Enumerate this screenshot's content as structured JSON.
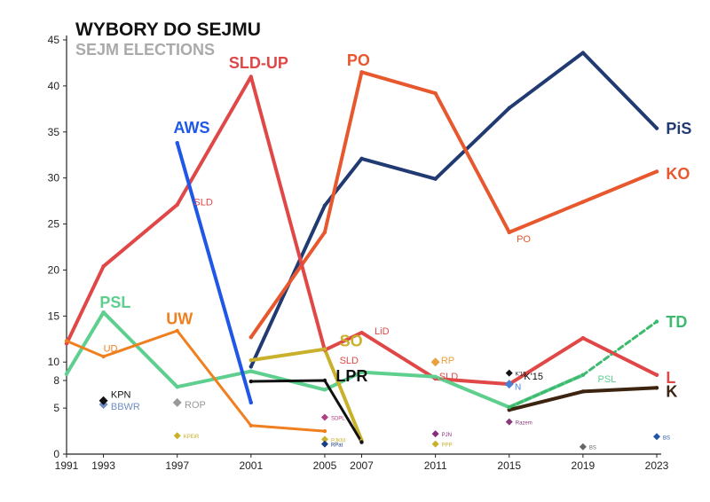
{
  "chart_data": {
    "type": "line",
    "title": "WYBORY DO SEJMU",
    "subtitle": "SEJM ELECTIONS",
    "xlabel": "",
    "ylabel": "",
    "ylim": [
      0,
      45
    ],
    "yticks": [
      0,
      5,
      8,
      10,
      15,
      20,
      25,
      30,
      35,
      40,
      45
    ],
    "x": [
      1991,
      1993,
      1997,
      2001,
      2005,
      2007,
      2011,
      2015,
      2019,
      2023
    ],
    "grid": false,
    "series": [
      {
        "name": "PiS",
        "color": "#213a72",
        "width": 4,
        "points": [
          [
            2001,
            9.5
          ],
          [
            2005,
            27.0
          ],
          [
            2007,
            32.1
          ],
          [
            2011,
            29.9
          ],
          [
            2015,
            37.6
          ],
          [
            2019,
            43.6
          ],
          [
            2023,
            35.4
          ]
        ],
        "label": {
          "text": "PiS",
          "x": 2023.5,
          "y": 35.4,
          "size": 18
        }
      },
      {
        "name": "KO",
        "color": "#e8582e",
        "width": 4,
        "points": [
          [
            2015,
            24.1
          ],
          [
            2019,
            27.4
          ],
          [
            2023,
            30.7
          ]
        ],
        "label": {
          "text": "KO",
          "x": 2023.5,
          "y": 30.5,
          "size": 18
        }
      },
      {
        "name": "PO",
        "color": "#e8582e",
        "width": 4,
        "points": [
          [
            2001,
            12.7
          ],
          [
            2005,
            24.1
          ],
          [
            2007,
            41.5
          ],
          [
            2011,
            39.2
          ],
          [
            2015,
            24.1
          ]
        ],
        "label": {
          "text": "PO",
          "x": 2006.2,
          "y": 42.8,
          "size": 18
        }
      },
      {
        "name": "SLD-UP",
        "color": "#e04848",
        "width": 4,
        "points": [
          [
            1991,
            12.0
          ],
          [
            1993,
            20.4
          ],
          [
            1997,
            27.1
          ],
          [
            2001,
            41.0
          ],
          [
            2005,
            11.3
          ],
          [
            2007,
            13.2
          ],
          [
            2011,
            8.2
          ],
          [
            2015,
            7.6
          ],
          [
            2019,
            12.6
          ],
          [
            2023,
            8.6
          ]
        ],
        "label": {
          "text": "SLD-UP",
          "x": 1999.8,
          "y": 42.5,
          "size": 18
        }
      },
      {
        "name": "PSL",
        "color": "#5fcf8f",
        "width": 4,
        "points": [
          [
            1991,
            8.7
          ],
          [
            1993,
            15.4
          ],
          [
            1997,
            7.3
          ],
          [
            2001,
            9.0
          ],
          [
            2005,
            7.0
          ],
          [
            2007,
            8.9
          ],
          [
            2011,
            8.4
          ],
          [
            2015,
            5.1
          ],
          [
            2019,
            8.6
          ]
        ],
        "label": {
          "text": "PSL",
          "x": 1992.8,
          "y": 16.5,
          "size": 18
        }
      },
      {
        "name": "UW",
        "color": "#f07f1f",
        "width": 3,
        "points": [
          [
            1991,
            12.3
          ],
          [
            1993,
            10.6
          ],
          [
            1997,
            13.4
          ],
          [
            2001,
            3.1
          ],
          [
            2005,
            2.5
          ]
        ],
        "label": {
          "text": "UW",
          "x": 1996.4,
          "y": 14.7,
          "size": 18
        }
      },
      {
        "name": "AWS",
        "color": "#1f57e8",
        "width": 4,
        "points": [
          [
            1997,
            33.8
          ],
          [
            2001,
            5.6
          ]
        ],
        "label": {
          "text": "AWS",
          "x": 1996.8,
          "y": 35.5,
          "size": 18
        }
      },
      {
        "name": "SO",
        "color": "#c9b12c",
        "width": 4,
        "points": [
          [
            2001,
            10.2
          ],
          [
            2005,
            11.4
          ],
          [
            2007,
            1.5
          ]
        ],
        "label": {
          "text": "SO",
          "x": 2005.8,
          "y": 12.3,
          "size": 18
        }
      },
      {
        "name": "LPR",
        "color": "#111111",
        "width": 3,
        "points": [
          [
            2001,
            7.9
          ],
          [
            2005,
            8.0
          ],
          [
            2007,
            1.3
          ]
        ],
        "label": {
          "text": "LPR",
          "x": 2005.6,
          "y": 8.5,
          "size": 18
        }
      },
      {
        "name": "K",
        "color": "#3d2410",
        "width": 4,
        "points": [
          [
            2015,
            4.8
          ],
          [
            2019,
            6.8
          ],
          [
            2023,
            7.2
          ]
        ],
        "label": {
          "text": "K",
          "x": 2023.5,
          "y": 6.8,
          "size": 18
        }
      },
      {
        "name": "TD",
        "color": "#3dba6e",
        "width": 3,
        "dash": "6,4",
        "points": [
          [
            2015,
            5.1
          ],
          [
            2019,
            8.6
          ],
          [
            2023,
            14.4
          ]
        ],
        "label": {
          "text": "TD",
          "x": 2023.5,
          "y": 14.4,
          "size": 18
        }
      },
      {
        "name": "L",
        "color": "#e04848",
        "width": 3,
        "points": [
          [
            2019,
            12.6
          ],
          [
            2023,
            8.6
          ]
        ],
        "label": {
          "text": "L",
          "x": 2023.5,
          "y": 8.3,
          "size": 18
        }
      },
      {
        "name": "N",
        "color": "#4a7fd4",
        "width": 1,
        "points": [
          [
            2015,
            7.6
          ]
        ],
        "label": {
          "text": "N",
          "x": 2015.3,
          "y": 7.3,
          "size": 10
        }
      },
      {
        "name": "RP",
        "color": "#e8a040",
        "width": 1,
        "points": [
          [
            2011,
            10.0
          ]
        ],
        "label": {
          "text": "RP",
          "x": 2011.3,
          "y": 10.2,
          "size": 11
        }
      },
      {
        "name": "ROP",
        "color": "#999999",
        "width": 1,
        "points": [
          [
            1997,
            5.6
          ]
        ],
        "label": {
          "text": "ROP",
          "x": 1997.4,
          "y": 5.4,
          "size": 11
        }
      },
      {
        "name": "BBWR",
        "color": "#7090c0",
        "width": 1,
        "points": [
          [
            1993,
            5.4
          ]
        ],
        "label": {
          "text": "BBWR",
          "x": 1993.4,
          "y": 5.2,
          "size": 11
        }
      },
      {
        "name": "KPN",
        "color": "#111111",
        "width": 1,
        "points": [
          [
            1993,
            5.8
          ]
        ],
        "label": {
          "text": "KPN",
          "x": 1993.4,
          "y": 6.5,
          "size": 11
        }
      }
    ],
    "annotations": [
      {
        "text": "SLD",
        "x": 2005.8,
        "y": 10.2,
        "color": "#e04848"
      },
      {
        "text": "SLD",
        "x": 2011.2,
        "y": 8.5,
        "color": "#e04848"
      },
      {
        "text": "LiD",
        "x": 2007.7,
        "y": 13.4,
        "color": "#e04848"
      },
      {
        "text": "PO",
        "x": 2015.4,
        "y": 23.4,
        "color": "#e8582e"
      },
      {
        "text": "SLD",
        "x": 1997.9,
        "y": 27.4,
        "color": "#e04848"
      },
      {
        "text": "UD",
        "x": 1993.0,
        "y": 11.5,
        "color": "#f07f1f"
      },
      {
        "text": "PSL",
        "x": 2019.8,
        "y": 8.2,
        "color": "#5fcf8f"
      },
      {
        "text": "K'15",
        "x": 2015.8,
        "y": 8.5,
        "color": "#111111"
      }
    ],
    "small_points": [
      {
        "x": 2005,
        "y": 4.0,
        "color": "#b04080",
        "label": "SDPL"
      },
      {
        "x": 2005,
        "y": 1.6,
        "color": "#c9b12c",
        "label": "PJKM"
      },
      {
        "x": 2005,
        "y": 1.1,
        "color": "#1a3b8a",
        "label": "RPat"
      },
      {
        "x": 2011,
        "y": 2.2,
        "color": "#8a2a7a",
        "label": "PJN"
      },
      {
        "x": 2011,
        "y": 1.1,
        "color": "#c9b12c",
        "label": "PPP"
      },
      {
        "x": 2015,
        "y": 3.5,
        "color": "#8a3a7a",
        "label": "Razem"
      },
      {
        "x": 2015,
        "y": 8.8,
        "color": "#111111",
        "label": "K'15"
      },
      {
        "x": 2019,
        "y": 0.8,
        "color": "#666666",
        "label": "BS"
      },
      {
        "x": 2023,
        "y": 1.9,
        "color": "#2255aa",
        "label": "BS"
      },
      {
        "x": 1997,
        "y": 2.0,
        "color": "#c9b12c",
        "label": "KPEiR"
      }
    ]
  }
}
